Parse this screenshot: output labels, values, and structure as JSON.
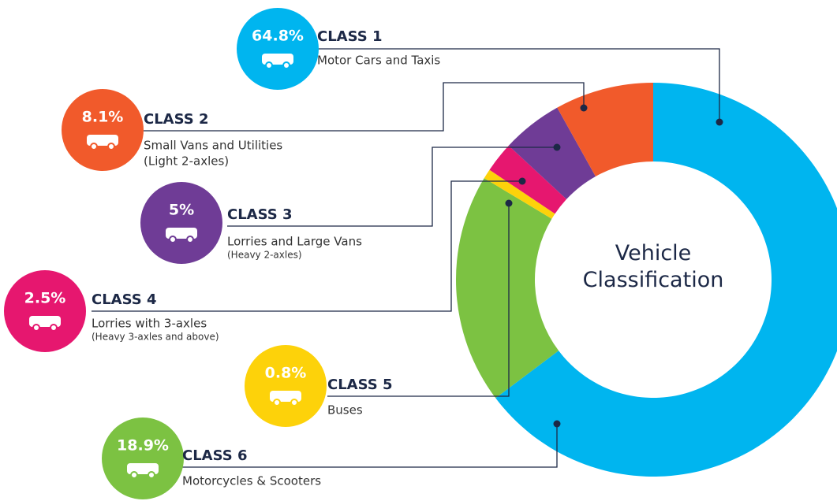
{
  "chart_data": {
    "type": "donut",
    "title": "Vehicle Classification",
    "categories": [
      "CLASS 1",
      "CLASS 2",
      "CLASS 3",
      "CLASS 4",
      "CLASS 5",
      "CLASS 6"
    ],
    "descriptions": [
      "Motor Cars and Taxis",
      "Small Vans and Utilities",
      "Lorries and Large Vans",
      "Lorries with 3-axles",
      "Buses",
      "Motorcycles & Scooters"
    ],
    "descriptions_line2": [
      null,
      "(Light 2-axles)",
      null,
      null,
      null,
      null
    ],
    "notes": [
      null,
      null,
      "(Heavy 2-axles)",
      "(Heavy 3-axles and above)",
      null,
      null
    ],
    "values": [
      64.8,
      8.1,
      5,
      2.5,
      0.8,
      18.9
    ],
    "value_labels": [
      "64.8%",
      "8.1%",
      "5%",
      "2.5%",
      "0.8%",
      "18.9%"
    ],
    "colors": [
      "#00b5ef",
      "#f15a2b",
      "#6f3c96",
      "#e6176f",
      "#fdd20a",
      "#7cc242"
    ]
  }
}
